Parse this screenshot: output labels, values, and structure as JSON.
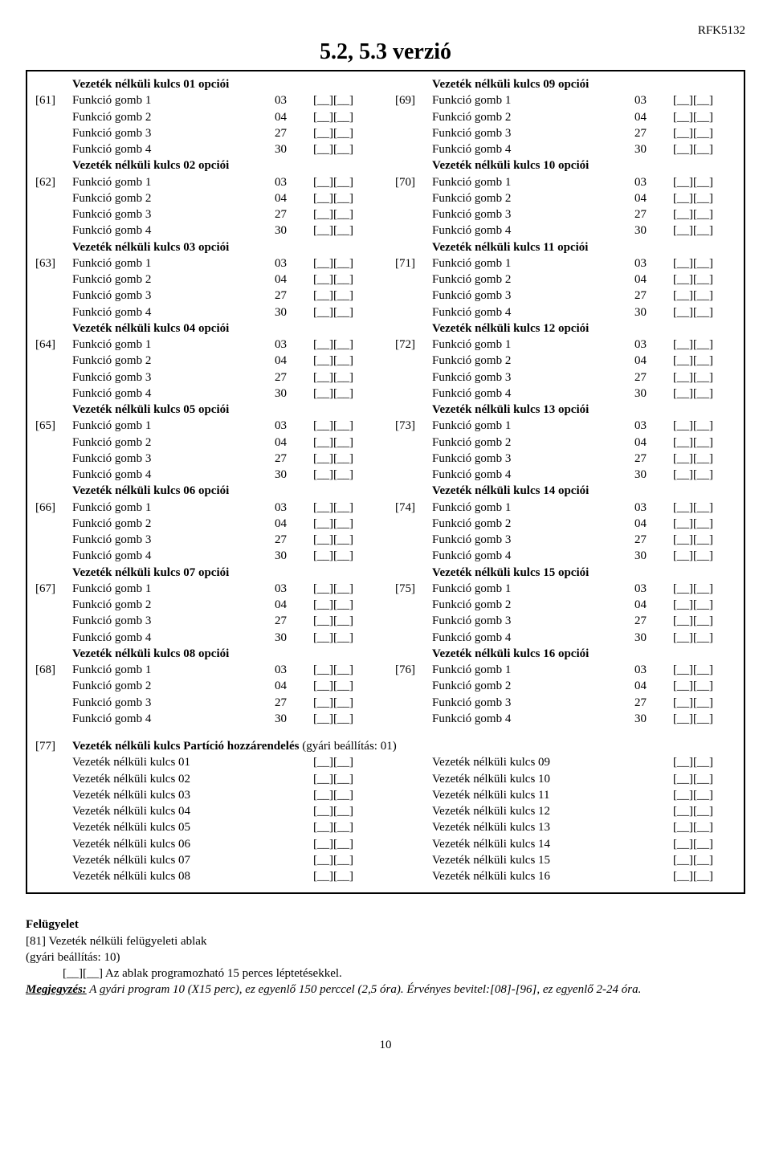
{
  "header_code": "RFK5132",
  "title": "5.2, 5.3 verzió",
  "blank": "[__][__]",
  "key_section_prefix": "Vezeték nélküli kulcs ",
  "key_section_suffix": " opciói",
  "fn_label_prefix": "Funkció gomb ",
  "fn_codes": [
    "03",
    "04",
    "27",
    "30"
  ],
  "left_sections": [
    {
      "num": "01",
      "idx": "[61]"
    },
    {
      "num": "02",
      "idx": "[62]"
    },
    {
      "num": "03",
      "idx": "[63]"
    },
    {
      "num": "04",
      "idx": "[64]"
    },
    {
      "num": "05",
      "idx": "[65]"
    },
    {
      "num": "06",
      "idx": "[66]"
    },
    {
      "num": "07",
      "idx": "[67]"
    },
    {
      "num": "08",
      "idx": "[68]"
    }
  ],
  "right_sections": [
    {
      "num": "09",
      "idx": "[69]"
    },
    {
      "num": "10",
      "idx": "[70]"
    },
    {
      "num": "11",
      "idx": "[71]"
    },
    {
      "num": "12",
      "idx": "[72]"
    },
    {
      "num": "13",
      "idx": "[73]"
    },
    {
      "num": "14",
      "idx": "[74]"
    },
    {
      "num": "15",
      "idx": "[75]"
    },
    {
      "num": "16",
      "idx": "[76]"
    }
  ],
  "sec77_idx": "[77]",
  "sec77_title": "Vezeték nélküli kulcs Partíció hozzárendelés  (gyári beállítás: 01)",
  "partition_label_prefix": "Vezeték nélküli kulcs ",
  "partitions_left": [
    "01",
    "02",
    "03",
    "04",
    "05",
    "06",
    "07",
    "08"
  ],
  "partitions_right": [
    "09",
    "10",
    "11",
    "12",
    "13",
    "14",
    "15",
    "16"
  ],
  "supervision_title": "Felügyelet",
  "sup_line1": "[81] Vezeték nélküli felügyeleti ablak",
  "sup_line2": "(gyári beállítás: 10)",
  "sup_line3": "[__][__] Az ablak programozható 15 perces léptetésekkel.",
  "note_label": "Megjegyzés:",
  "note_body": " A gyári program 10 (X15 perc), ez egyenlő 150 perccel (2,5 óra). Érvényes bevitel:[08]-[96], ez egyenlő 2-24 óra.",
  "page_number": "10"
}
